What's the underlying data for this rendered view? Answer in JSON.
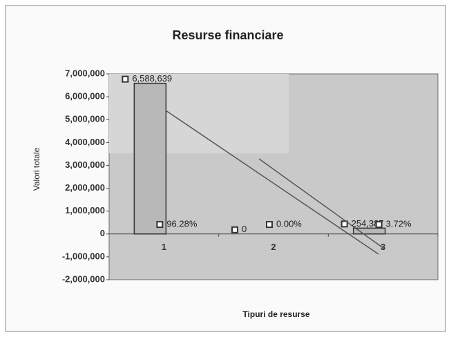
{
  "chart_data": {
    "type": "bar",
    "title": "Resurse financiare",
    "x_label": "Tipuri de resurse",
    "y_label": "Valori totale",
    "categories": [
      "1",
      "2",
      "3"
    ],
    "values": [
      6588639,
      0,
      254387
    ],
    "value_labels": [
      "6,588,639",
      "0",
      "254,387"
    ],
    "percentages": [
      96.28,
      0,
      3.72
    ],
    "percentage_labels": [
      "96.28%",
      "0.00%",
      "3.72%"
    ],
    "color": "#b8b8b8",
    "ylim": [
      -2000000,
      7000000
    ],
    "yticks": [
      {
        "value": -2000000,
        "label": "-2,000,000"
      },
      {
        "value": -1000000,
        "label": "-1,000,000"
      },
      0,
      {
        "value": 1000000,
        "label": "1,000,000"
      },
      {
        "value": 2000000,
        "label": "2,000,000"
      },
      {
        "value": 3000000,
        "label": "3,000,000"
      },
      {
        "value": 4000000,
        "label": "4,000,000"
      },
      {
        "value": 5000000,
        "label": "5,000,000"
      },
      {
        "value": 6000000,
        "label": "6,000,000"
      },
      {
        "value": 7000000,
        "label": "7,000,000"
      }
    ]
  }
}
